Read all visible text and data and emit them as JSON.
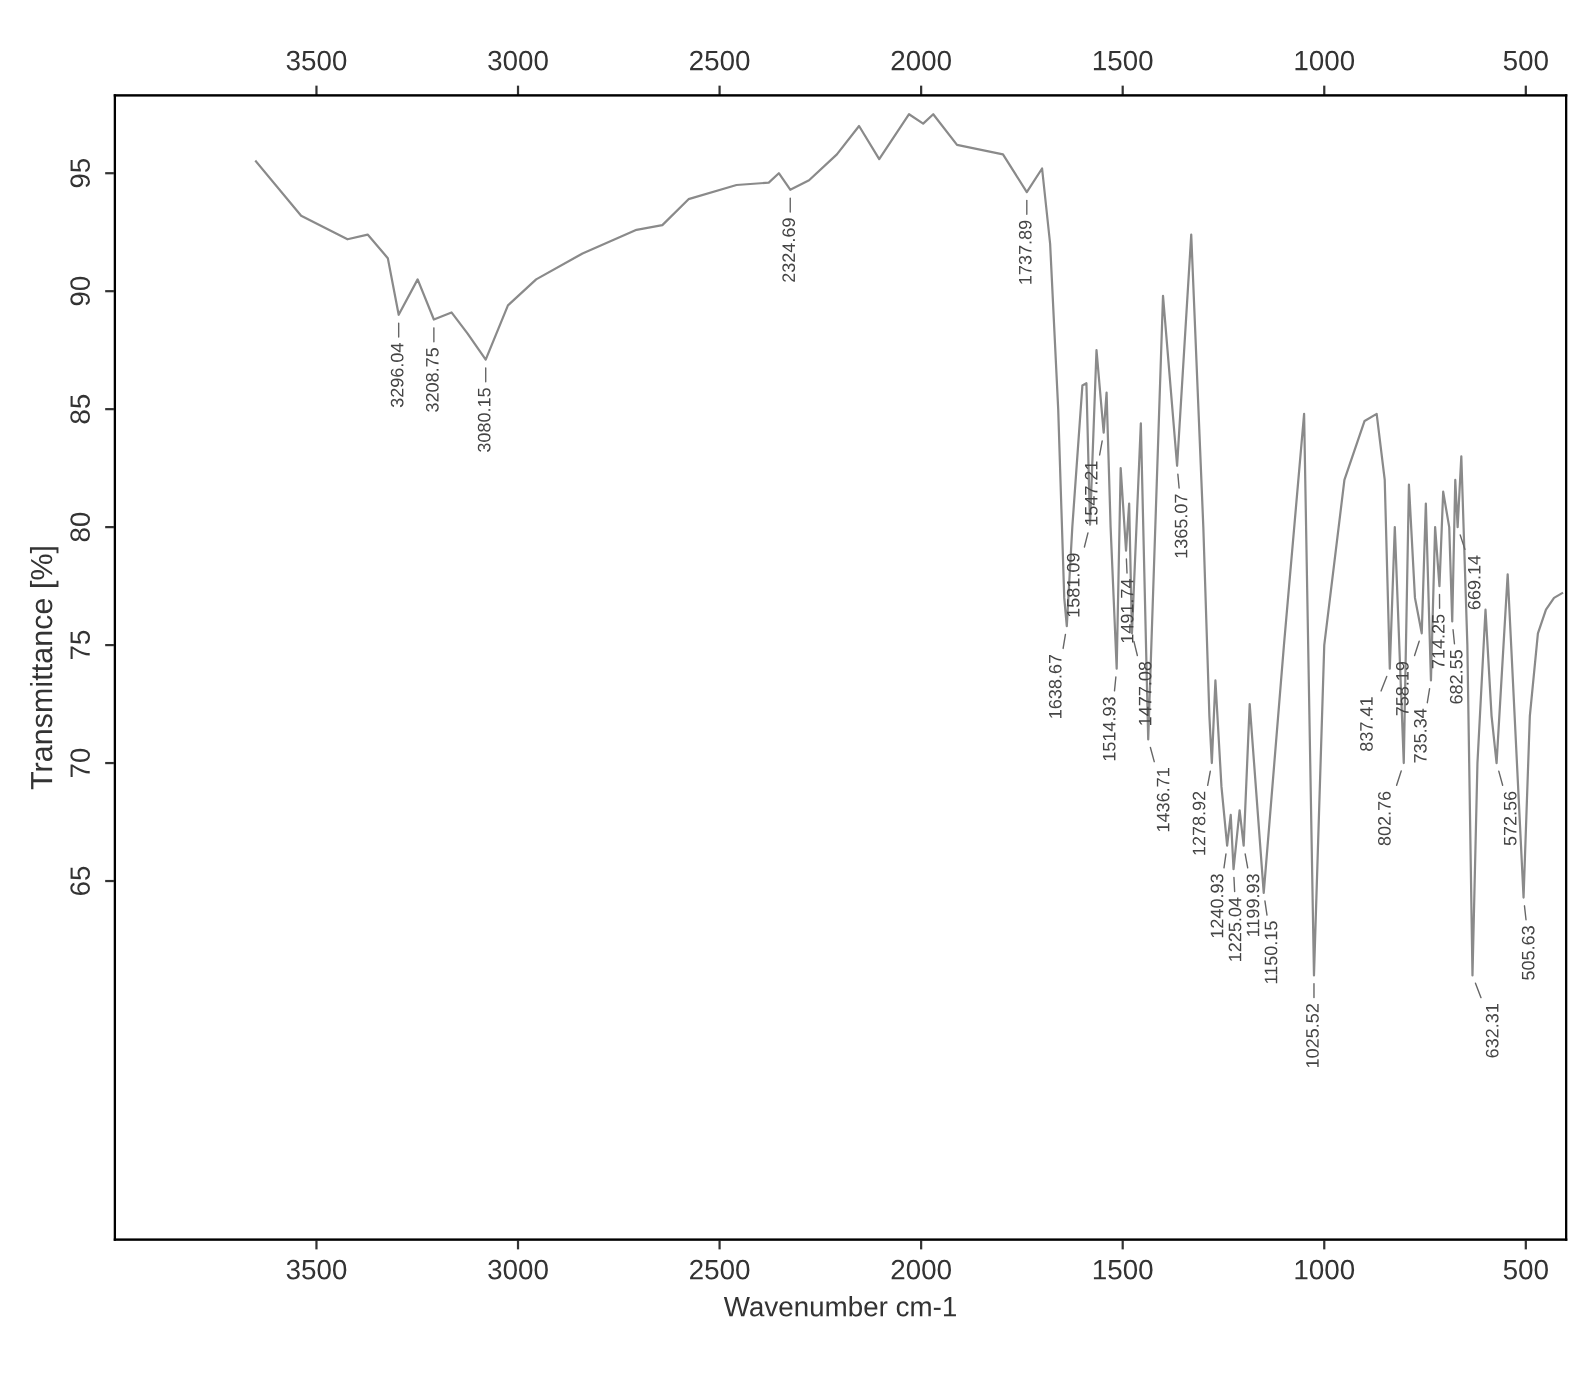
{
  "chart_data": {
    "type": "line",
    "xlabel": "Wavenumber cm-1",
    "ylabel": "Transmittance [%]",
    "xlim": [
      4000,
      400
    ],
    "ylim": [
      49.8,
      98.3
    ],
    "x2lim": [
      4000,
      400
    ],
    "xticks": [
      3500,
      3000,
      2500,
      2000,
      1500,
      1000,
      500
    ],
    "x2ticks": [
      3500,
      3000,
      2500,
      2000,
      1500,
      1000,
      500
    ],
    "yticks": [
      65,
      70,
      75,
      80,
      85,
      90,
      95
    ],
    "grid": false,
    "marker": "none",
    "line_style": "solid",
    "series": [
      {
        "color": "#8a8a8a",
        "x": [
          3650,
          3538,
          3423,
          3373,
          3323,
          3296.04,
          3249,
          3208.75,
          3165,
          3125,
          3080.15,
          3025,
          2955,
          2840,
          2706,
          2642,
          2577,
          2458,
          2378,
          2353,
          2324.69,
          2278,
          2209,
          2154,
          2104,
          2030,
          1995,
          1970,
          1911,
          1797,
          1737.89,
          1700,
          1680,
          1660,
          1645,
          1638.67,
          1625,
          1600,
          1590,
          1581.09,
          1565,
          1547.21,
          1540,
          1530,
          1514.93,
          1505,
          1491.74,
          1484,
          1477.08,
          1455,
          1436.71,
          1400,
          1365.07,
          1330,
          1300,
          1285,
          1278.92,
          1270,
          1255,
          1240.93,
          1232,
          1225.04,
          1210,
          1199.93,
          1185,
          1150.15,
          1100,
          1050,
          1025.52,
          1000,
          950,
          900,
          870,
          850,
          837.41,
          825,
          802.76,
          790,
          775,
          758.19,
          748,
          735.34,
          725,
          714.25,
          705,
          690,
          682.55,
          675,
          669.14,
          660,
          645,
          632.31,
          620,
          600,
          585,
          572.56,
          545,
          505.63,
          490,
          470,
          450,
          430,
          410
        ],
        "values": [
          95.5,
          93.2,
          92.2,
          92.4,
          91.4,
          89.0,
          90.5,
          88.8,
          89.1,
          88.2,
          87.1,
          89.4,
          90.5,
          91.6,
          92.6,
          92.8,
          93.9,
          94.5,
          94.6,
          95.0,
          94.3,
          94.7,
          95.8,
          97.0,
          95.6,
          97.5,
          97.1,
          97.5,
          96.2,
          95.8,
          94.2,
          95.2,
          92.0,
          85.0,
          77.0,
          75.8,
          80.0,
          86.0,
          86.1,
          80.1,
          87.5,
          84.0,
          85.7,
          80.0,
          74.0,
          82.5,
          79.0,
          81.0,
          75.5,
          84.4,
          71.0,
          89.8,
          82.6,
          92.4,
          80.0,
          72.0,
          70.0,
          73.5,
          69.0,
          66.5,
          67.8,
          65.5,
          68.0,
          66.5,
          72.5,
          64.5,
          75.0,
          84.8,
          61.0,
          75.0,
          82.0,
          84.5,
          84.8,
          82.0,
          74.0,
          80.0,
          70.0,
          81.8,
          77.0,
          75.5,
          81.0,
          73.5,
          80.0,
          77.5,
          81.5,
          80.0,
          76.0,
          82.0,
          80.0,
          83.0,
          75.0,
          61.0,
          70.0,
          76.5,
          72.0,
          70.0,
          78.0,
          64.3,
          72.0,
          75.5,
          76.5,
          77.0,
          77.2
        ]
      }
    ],
    "annotations": [
      {
        "text": "3296.04",
        "x": 3296.04,
        "y": 89.0
      },
      {
        "text": "3208.75",
        "x": 3208.75,
        "y": 88.8
      },
      {
        "text": "3080.15",
        "x": 3080.15,
        "y": 87.1
      },
      {
        "text": "2324.69",
        "x": 2324.69,
        "y": 94.3
      },
      {
        "text": "1737.89",
        "x": 1737.89,
        "y": 94.2
      },
      {
        "text": "1638.67",
        "x": 1638.67,
        "y": 75.8
      },
      {
        "text": "1581.09",
        "x": 1581.09,
        "y": 80.1
      },
      {
        "text": "1547.21",
        "x": 1547.21,
        "y": 84.0
      },
      {
        "text": "1514.93",
        "x": 1514.93,
        "y": 74.0
      },
      {
        "text": "1491.74",
        "x": 1491.74,
        "y": 79.0
      },
      {
        "text": "1477.08",
        "x": 1477.08,
        "y": 75.5
      },
      {
        "text": "1436.71",
        "x": 1436.71,
        "y": 71.0
      },
      {
        "text": "1365.07",
        "x": 1365.07,
        "y": 82.6
      },
      {
        "text": "1278.92",
        "x": 1278.92,
        "y": 70.0
      },
      {
        "text": "1240.93",
        "x": 1240.93,
        "y": 66.5
      },
      {
        "text": "1225.04",
        "x": 1225.04,
        "y": 65.5
      },
      {
        "text": "1199.93",
        "x": 1199.93,
        "y": 66.5
      },
      {
        "text": "1150.15",
        "x": 1150.15,
        "y": 64.5
      },
      {
        "text": "1025.52",
        "x": 1025.52,
        "y": 61.0
      },
      {
        "text": "837.41",
        "x": 837.41,
        "y": 74.0
      },
      {
        "text": "802.76",
        "x": 802.76,
        "y": 70.0
      },
      {
        "text": "758.19",
        "x": 758.19,
        "y": 75.5
      },
      {
        "text": "735.34",
        "x": 735.34,
        "y": 73.5
      },
      {
        "text": "714.25",
        "x": 714.25,
        "y": 77.5
      },
      {
        "text": "682.55",
        "x": 682.55,
        "y": 76.0
      },
      {
        "text": "669.14",
        "x": 669.14,
        "y": 80.0
      },
      {
        "text": "632.31",
        "x": 632.31,
        "y": 61.0
      },
      {
        "text": "572.56",
        "x": 572.56,
        "y": 70.0
      },
      {
        "text": "505.63",
        "x": 505.63,
        "y": 64.3
      }
    ]
  }
}
